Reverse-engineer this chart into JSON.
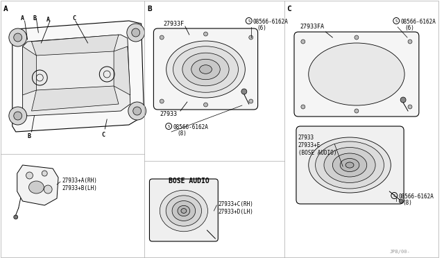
{
  "bg_color": "#ffffff",
  "line_color": "#000000",
  "text_color": "#000000",
  "fig_width": 6.4,
  "fig_height": 3.72,
  "dpi": 100,
  "section_A_label": "A",
  "section_B_label": "B",
  "section_C_label": "C",
  "part_labels": {
    "tweeter_rh": "27933+A(RH)",
    "tweeter_lh": "27933+B(LH)",
    "front_speaker": "27933",
    "front_bracket": "27933F",
    "front_screw1": "08566-6162A",
    "front_screw1_qty": "(6)",
    "front_screw2": "08566-6162A",
    "front_screw2_qty": "(8)",
    "bose_label": "BOSE AUDIO",
    "bose_rh": "27933+C(RH)",
    "bose_lh": "27933+D(LH)",
    "rear_bracket": "27933FA",
    "rear_speaker": "27933",
    "rear_speaker_e": "27933+E",
    "rear_speaker_e_note": "(BOSE AUDIO)",
    "rear_screw1": "08566-6162A",
    "rear_screw1_qty": "(6)",
    "rear_screw2": "08566-6162A",
    "rear_screw2_qty": "(8)"
  },
  "watermark": "JPB/00-"
}
